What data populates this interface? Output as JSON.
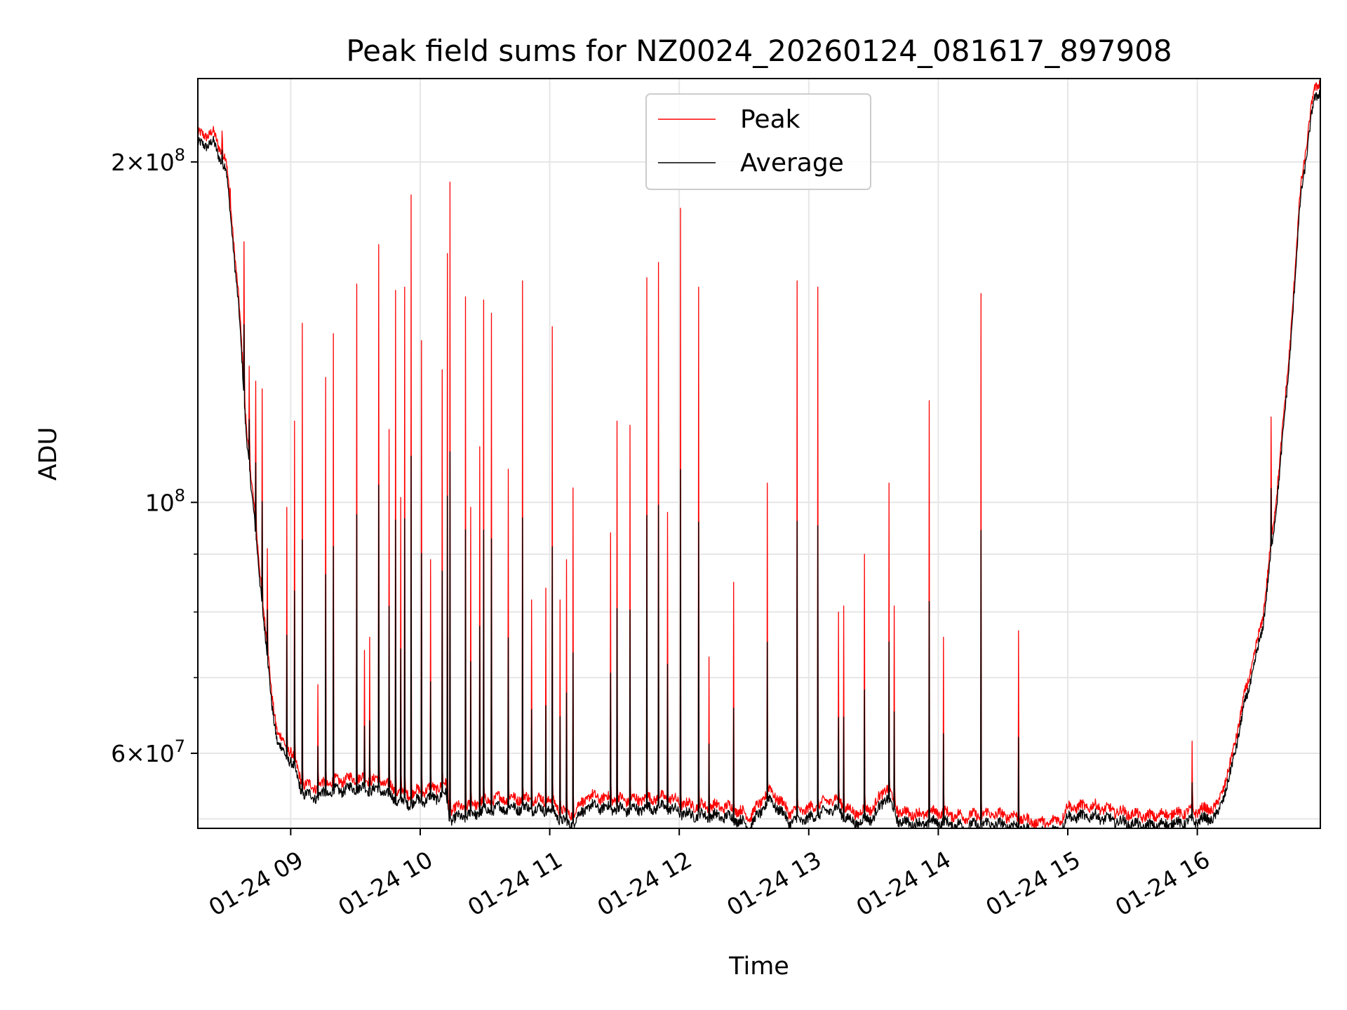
{
  "chart_data": {
    "type": "line",
    "title": "Peak field sums for NZ0024_20260124_081617_897908",
    "xlabel": "Time",
    "ylabel": "ADU",
    "yscale": "log",
    "grid": true,
    "legend_position": "top-center",
    "xlim_hours": [
      8.283,
      16.95
    ],
    "ylim": [
      51500000,
      237000000
    ],
    "x_ticks": [
      {
        "value": 9,
        "label": "01-24 09"
      },
      {
        "value": 10,
        "label": "01-24 10"
      },
      {
        "value": 11,
        "label": "01-24 11"
      },
      {
        "value": 12,
        "label": "01-24 12"
      },
      {
        "value": 13,
        "label": "01-24 13"
      },
      {
        "value": 14,
        "label": "01-24 14"
      },
      {
        "value": 15,
        "label": "01-24 15"
      },
      {
        "value": 16,
        "label": "01-24 16"
      }
    ],
    "y_ticks": [
      {
        "value": 60000000,
        "mantissa": "6",
        "exponent": "7",
        "sci": true
      },
      {
        "value": 100000000,
        "mantissa": "",
        "exponent": "8",
        "sci": false
      },
      {
        "value": 200000000,
        "mantissa": "2",
        "exponent": "8",
        "sci": true
      }
    ],
    "y_minor_ticks": [
      70000000,
      80000000,
      90000000
    ],
    "y_minor_grid": [
      52500000,
      70000000,
      80000000,
      90000000
    ],
    "series": [
      {
        "name": "Peak",
        "color": "#ff0000"
      },
      {
        "name": "Average",
        "color": "#000000"
      }
    ],
    "average_curve": [
      [
        8.283,
        210000000
      ],
      [
        8.4,
        211000000
      ],
      [
        8.5,
        200000000
      ],
      [
        8.55,
        175000000
      ],
      [
        8.6,
        150000000
      ],
      [
        8.65,
        120000000
      ],
      [
        8.7,
        103000000
      ],
      [
        8.75,
        90000000
      ],
      [
        8.8,
        78000000
      ],
      [
        8.85,
        68000000
      ],
      [
        8.9,
        62000000
      ],
      [
        9.0,
        60000000
      ],
      [
        9.1,
        56000000
      ],
      [
        9.2,
        55800000
      ],
      [
        9.3,
        56300000
      ],
      [
        9.5,
        56800000
      ],
      [
        9.7,
        56500000
      ],
      [
        9.8,
        55500000
      ],
      [
        9.9,
        55000000
      ],
      [
        10.0,
        55300000
      ],
      [
        10.2,
        56000000
      ],
      [
        10.23,
        53200000
      ],
      [
        10.4,
        53800000
      ],
      [
        10.6,
        54500000
      ],
      [
        10.8,
        54500000
      ],
      [
        11.0,
        54300000
      ],
      [
        11.15,
        52600000
      ],
      [
        11.3,
        54700000
      ],
      [
        11.6,
        54300000
      ],
      [
        11.9,
        54600000
      ],
      [
        12.05,
        53800000
      ],
      [
        12.4,
        53500000
      ],
      [
        12.55,
        52500000
      ],
      [
        12.7,
        55500000
      ],
      [
        12.85,
        53000000
      ],
      [
        13.0,
        53300000
      ],
      [
        13.2,
        54500000
      ],
      [
        13.35,
        52800000
      ],
      [
        13.5,
        53500000
      ],
      [
        13.6,
        55800000
      ],
      [
        13.7,
        53000000
      ],
      [
        13.85,
        52700000
      ],
      [
        14.0,
        53000000
      ],
      [
        14.2,
        52500000
      ],
      [
        14.4,
        52800000
      ],
      [
        14.6,
        52500000
      ],
      [
        14.7,
        52000000
      ],
      [
        14.85,
        51800000
      ],
      [
        14.95,
        52300000
      ],
      [
        15.0,
        53500000
      ],
      [
        15.2,
        53600000
      ],
      [
        15.4,
        53000000
      ],
      [
        15.6,
        52500000
      ],
      [
        15.8,
        52800000
      ],
      [
        15.95,
        53000000
      ],
      [
        16.15,
        53500000
      ],
      [
        16.25,
        58000000
      ],
      [
        16.35,
        66000000
      ],
      [
        16.5,
        78000000
      ],
      [
        16.6,
        98000000
      ],
      [
        16.7,
        130000000
      ],
      [
        16.8,
        190000000
      ],
      [
        16.9,
        230000000
      ],
      [
        16.95,
        236000000
      ]
    ],
    "peak_events": [
      {
        "t": 8.47,
        "v": 213000000
      },
      {
        "t": 8.53,
        "v": 182000000
      },
      {
        "t": 8.64,
        "v": 170000000
      },
      {
        "t": 8.68,
        "v": 132000000
      },
      {
        "t": 8.73,
        "v": 128000000
      },
      {
        "t": 8.78,
        "v": 126000000
      },
      {
        "t": 8.82,
        "v": 91000000
      },
      {
        "t": 8.97,
        "v": 99000000
      },
      {
        "t": 9.03,
        "v": 118000000
      },
      {
        "t": 9.09,
        "v": 144000000
      },
      {
        "t": 9.21,
        "v": 69000000
      },
      {
        "t": 9.27,
        "v": 129000000
      },
      {
        "t": 9.33,
        "v": 141000000
      },
      {
        "t": 9.51,
        "v": 156000000
      },
      {
        "t": 9.57,
        "v": 74000000
      },
      {
        "t": 9.61,
        "v": 76000000
      },
      {
        "t": 9.68,
        "v": 169000000
      },
      {
        "t": 9.76,
        "v": 116000000
      },
      {
        "t": 9.81,
        "v": 154000000
      },
      {
        "t": 9.85,
        "v": 101000000
      },
      {
        "t": 9.88,
        "v": 155000000
      },
      {
        "t": 9.93,
        "v": 187000000
      },
      {
        "t": 10.01,
        "v": 139000000
      },
      {
        "t": 10.08,
        "v": 89000000
      },
      {
        "t": 10.17,
        "v": 131000000
      },
      {
        "t": 10.21,
        "v": 166000000
      },
      {
        "t": 10.23,
        "v": 192000000
      },
      {
        "t": 10.35,
        "v": 152000000
      },
      {
        "t": 10.39,
        "v": 99000000
      },
      {
        "t": 10.46,
        "v": 112000000
      },
      {
        "t": 10.49,
        "v": 151000000
      },
      {
        "t": 10.55,
        "v": 147000000
      },
      {
        "t": 10.68,
        "v": 107000000
      },
      {
        "t": 10.79,
        "v": 157000000
      },
      {
        "t": 10.86,
        "v": 82000000
      },
      {
        "t": 10.97,
        "v": 84000000
      },
      {
        "t": 11.02,
        "v": 143000000
      },
      {
        "t": 11.08,
        "v": 82000000
      },
      {
        "t": 11.13,
        "v": 89000000
      },
      {
        "t": 11.18,
        "v": 103000000
      },
      {
        "t": 11.47,
        "v": 94000000
      },
      {
        "t": 11.52,
        "v": 118000000
      },
      {
        "t": 11.62,
        "v": 117000000
      },
      {
        "t": 11.75,
        "v": 158000000
      },
      {
        "t": 11.84,
        "v": 163000000
      },
      {
        "t": 11.91,
        "v": 98000000
      },
      {
        "t": 12.01,
        "v": 182000000
      },
      {
        "t": 12.15,
        "v": 155000000
      },
      {
        "t": 12.23,
        "v": 73000000
      },
      {
        "t": 12.42,
        "v": 85000000
      },
      {
        "t": 12.68,
        "v": 104000000
      },
      {
        "t": 12.91,
        "v": 157000000
      },
      {
        "t": 13.07,
        "v": 155000000
      },
      {
        "t": 13.23,
        "v": 80000000
      },
      {
        "t": 13.27,
        "v": 81000000
      },
      {
        "t": 13.43,
        "v": 90000000
      },
      {
        "t": 13.62,
        "v": 104000000
      },
      {
        "t": 13.66,
        "v": 81000000
      },
      {
        "t": 13.93,
        "v": 123000000
      },
      {
        "t": 14.04,
        "v": 76000000
      },
      {
        "t": 14.33,
        "v": 153000000
      },
      {
        "t": 14.62,
        "v": 77000000
      },
      {
        "t": 15.96,
        "v": 61500000
      },
      {
        "t": 16.57,
        "v": 119000000
      }
    ]
  }
}
